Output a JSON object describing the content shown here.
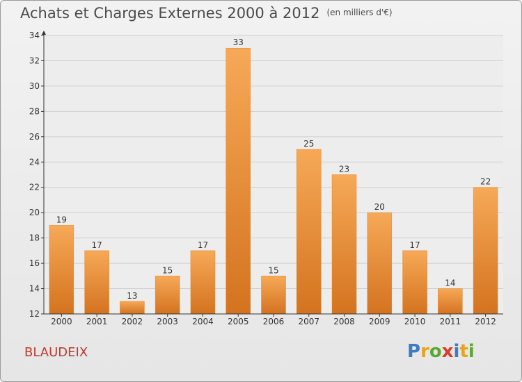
{
  "title": "Achats et Charges Externes 2000 à 2012",
  "subtitle": "(en milliers d'€)",
  "commune": "BLAUDEIX",
  "logo": {
    "text": "Proxiti",
    "letters": [
      {
        "ch": "P",
        "color": "#3b7dc4"
      },
      {
        "ch": "r",
        "color": "#e8a21d"
      },
      {
        "ch": "o",
        "color": "#5aa832"
      },
      {
        "ch": "x",
        "color": "#d93a2b"
      },
      {
        "ch": "i",
        "color": "#3b7dc4"
      },
      {
        "ch": "t",
        "color": "#e8a21d"
      },
      {
        "ch": "i",
        "color": "#5aa832"
      }
    ]
  },
  "colors": {
    "bar_light": "#f6a957",
    "bar_dark": "#d4731f",
    "axis": "#333333",
    "grid": "#cfcfcf",
    "text": "#333333"
  },
  "chart_data": {
    "type": "bar",
    "categories": [
      "2000",
      "2001",
      "2002",
      "2003",
      "2004",
      "2005",
      "2006",
      "2007",
      "2008",
      "2009",
      "2010",
      "2011",
      "2012"
    ],
    "values": [
      19,
      17,
      13,
      15,
      17,
      33,
      15,
      25,
      23,
      20,
      17,
      14,
      22
    ],
    "data_labels": [
      "19",
      "17",
      "13",
      "15",
      "17",
      "33",
      "15",
      "25",
      "23",
      "20",
      "17",
      "14",
      "22"
    ],
    "title": "Achats et Charges Externes 2000 à 2012",
    "subtitle": "(en milliers d'€)",
    "xlabel": "",
    "ylabel": "",
    "ylim": [
      12,
      34
    ],
    "yticks": [
      12,
      14,
      16,
      18,
      20,
      22,
      24,
      26,
      28,
      30,
      32,
      34
    ],
    "grid": true,
    "legend": "none"
  }
}
